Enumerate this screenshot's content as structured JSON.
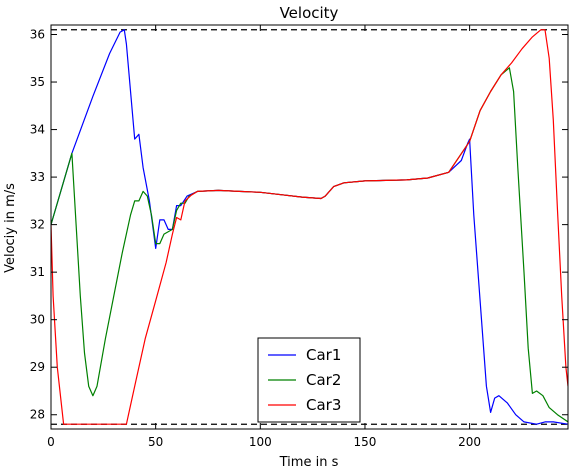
{
  "chart_data": {
    "type": "line",
    "title": "Velocity",
    "xlabel": "Time in s",
    "ylabel": "Velociy in m/s",
    "xlim": [
      0,
      247
    ],
    "ylim": [
      27.7,
      36.2
    ],
    "xticks": [
      0,
      50,
      100,
      150,
      200
    ],
    "yticks": [
      28,
      29,
      30,
      31,
      32,
      33,
      34,
      35,
      36
    ],
    "grid": false,
    "legend_position": "bottom-center",
    "reference_lines": [
      {
        "y": 27.8,
        "style": "dashed",
        "color": "#000000"
      },
      {
        "y": 36.1,
        "style": "dashed",
        "color": "#000000"
      }
    ],
    "series": [
      {
        "name": "Car1",
        "color": "#0000ff",
        "points": [
          [
            0,
            32.0
          ],
          [
            10,
            33.5
          ],
          [
            20,
            34.7
          ],
          [
            28,
            35.6
          ],
          [
            33,
            36.05
          ],
          [
            35,
            36.1
          ],
          [
            36,
            35.8
          ],
          [
            40,
            33.8
          ],
          [
            42,
            33.9
          ],
          [
            44,
            33.2
          ],
          [
            47,
            32.5
          ],
          [
            50,
            31.5
          ],
          [
            52,
            32.1
          ],
          [
            54,
            32.1
          ],
          [
            56,
            31.9
          ],
          [
            58,
            31.9
          ],
          [
            60,
            32.4
          ],
          [
            62,
            32.4
          ],
          [
            65,
            32.6
          ],
          [
            70,
            32.7
          ],
          [
            80,
            32.72
          ],
          [
            90,
            32.7
          ],
          [
            100,
            32.68
          ],
          [
            110,
            32.63
          ],
          [
            120,
            32.58
          ],
          [
            129,
            32.55
          ],
          [
            131,
            32.6
          ],
          [
            135,
            32.8
          ],
          [
            140,
            32.88
          ],
          [
            150,
            32.92
          ],
          [
            160,
            32.93
          ],
          [
            170,
            32.94
          ],
          [
            180,
            32.98
          ],
          [
            190,
            33.1
          ],
          [
            196,
            33.35
          ],
          [
            199,
            33.7
          ],
          [
            200,
            33.8
          ],
          [
            202,
            32.2
          ],
          [
            205,
            30.4
          ],
          [
            208,
            28.6
          ],
          [
            210,
            28.05
          ],
          [
            212,
            28.35
          ],
          [
            214,
            28.4
          ],
          [
            218,
            28.25
          ],
          [
            222,
            28.0
          ],
          [
            226,
            27.85
          ],
          [
            232,
            27.8
          ],
          [
            236,
            27.85
          ],
          [
            240,
            27.85
          ],
          [
            247,
            27.8
          ]
        ]
      },
      {
        "name": "Car2",
        "color": "#008000",
        "points": [
          [
            0,
            32.0
          ],
          [
            10,
            33.5
          ],
          [
            12,
            32.0
          ],
          [
            14,
            30.5
          ],
          [
            16,
            29.3
          ],
          [
            18,
            28.6
          ],
          [
            20,
            28.4
          ],
          [
            22,
            28.6
          ],
          [
            26,
            29.6
          ],
          [
            30,
            30.5
          ],
          [
            34,
            31.4
          ],
          [
            38,
            32.2
          ],
          [
            40,
            32.5
          ],
          [
            42,
            32.5
          ],
          [
            44,
            32.7
          ],
          [
            46,
            32.6
          ],
          [
            48,
            32.2
          ],
          [
            50,
            31.6
          ],
          [
            52,
            31.6
          ],
          [
            54,
            31.8
          ],
          [
            58,
            31.9
          ],
          [
            60,
            32.3
          ],
          [
            62,
            32.45
          ],
          [
            64,
            32.45
          ],
          [
            66,
            32.6
          ],
          [
            70,
            32.7
          ],
          [
            80,
            32.72
          ],
          [
            90,
            32.7
          ],
          [
            100,
            32.68
          ],
          [
            110,
            32.63
          ],
          [
            120,
            32.58
          ],
          [
            129,
            32.55
          ],
          [
            131,
            32.6
          ],
          [
            135,
            32.8
          ],
          [
            140,
            32.88
          ],
          [
            150,
            32.92
          ],
          [
            160,
            32.93
          ],
          [
            170,
            32.94
          ],
          [
            180,
            32.98
          ],
          [
            190,
            33.1
          ],
          [
            200,
            33.75
          ],
          [
            205,
            34.4
          ],
          [
            210,
            34.8
          ],
          [
            215,
            35.15
          ],
          [
            219,
            35.3
          ],
          [
            221,
            34.8
          ],
          [
            223,
            33.2
          ],
          [
            226,
            31.0
          ],
          [
            228,
            29.4
          ],
          [
            230,
            28.45
          ],
          [
            232,
            28.5
          ],
          [
            235,
            28.4
          ],
          [
            238,
            28.15
          ],
          [
            242,
            28.0
          ],
          [
            247,
            27.85
          ]
        ]
      },
      {
        "name": "Car3",
        "color": "#ff0000",
        "points": [
          [
            0,
            32.0
          ],
          [
            1,
            30.5
          ],
          [
            3,
            29.0
          ],
          [
            6,
            27.8
          ],
          [
            10,
            27.8
          ],
          [
            20,
            27.8
          ],
          [
            30,
            27.8
          ],
          [
            36,
            27.8
          ],
          [
            40,
            28.6
          ],
          [
            45,
            29.6
          ],
          [
            50,
            30.4
          ],
          [
            55,
            31.2
          ],
          [
            58,
            31.8
          ],
          [
            60,
            32.15
          ],
          [
            62,
            32.1
          ],
          [
            64,
            32.5
          ],
          [
            67,
            32.62
          ],
          [
            70,
            32.7
          ],
          [
            80,
            32.72
          ],
          [
            90,
            32.7
          ],
          [
            100,
            32.68
          ],
          [
            110,
            32.63
          ],
          [
            120,
            32.58
          ],
          [
            129,
            32.55
          ],
          [
            131,
            32.6
          ],
          [
            135,
            32.8
          ],
          [
            140,
            32.88
          ],
          [
            150,
            32.92
          ],
          [
            160,
            32.93
          ],
          [
            170,
            32.94
          ],
          [
            180,
            32.98
          ],
          [
            190,
            33.1
          ],
          [
            200,
            33.75
          ],
          [
            205,
            34.4
          ],
          [
            210,
            34.8
          ],
          [
            215,
            35.15
          ],
          [
            220,
            35.4
          ],
          [
            225,
            35.7
          ],
          [
            230,
            35.95
          ],
          [
            234,
            36.1
          ],
          [
            236,
            36.1
          ],
          [
            238,
            35.5
          ],
          [
            240,
            34.2
          ],
          [
            242,
            32.3
          ],
          [
            244,
            30.5
          ],
          [
            246,
            29.0
          ],
          [
            247,
            28.6
          ]
        ]
      }
    ]
  }
}
